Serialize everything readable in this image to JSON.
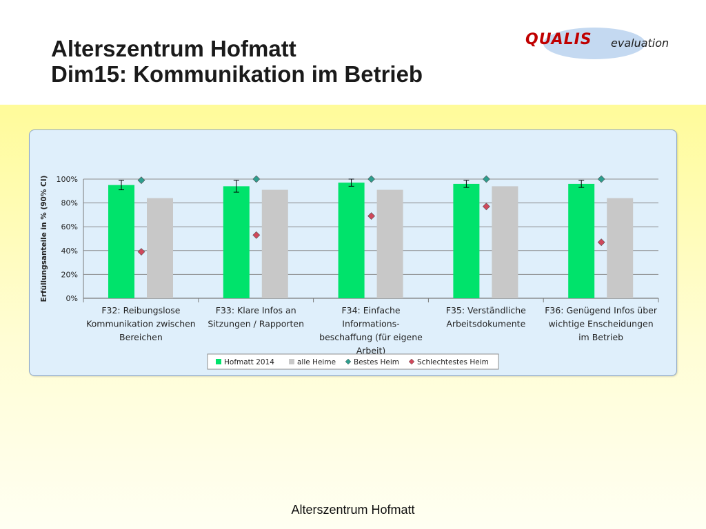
{
  "slide": {
    "title_line1": "Alterszentrum Hofmatt",
    "title_line2": "Dim15: Kommunikation im Betrieb",
    "logo_brand": "QUALIS",
    "logo_sub": "evaluation",
    "footer": "Alterszentrum Hofmatt"
  },
  "chart_data": {
    "type": "bar",
    "ylabel": "Erfüllungsanteile in % (90% CI)",
    "ylim": [
      0,
      100
    ],
    "yticks": [
      0,
      20,
      40,
      60,
      80,
      100
    ],
    "ytick_labels": [
      "0%",
      "20%",
      "40%",
      "60%",
      "80%",
      "100%"
    ],
    "grid": true,
    "legend_position": "bottom",
    "categories": [
      [
        "F32: Reibungslose",
        "Kommunikation zwischen",
        "Bereichen"
      ],
      [
        "F33: Klare Infos an",
        "Sitzungen / Rapporten"
      ],
      [
        "F34: Einfache",
        "Informations-",
        "beschaffung (für eigene",
        "Arbeit)"
      ],
      [
        "F35: Verständliche",
        "Arbeitsdokumente"
      ],
      [
        "F36: Genügend Infos über",
        "wichtige Enscheidungen",
        "im Betrieb"
      ]
    ],
    "series": [
      {
        "name": "Hofmatt 2014",
        "kind": "bar",
        "color": "#00e36b",
        "values": [
          95,
          94,
          97,
          96,
          96
        ],
        "ci_low": [
          91,
          89,
          94,
          93,
          93
        ],
        "ci_high": [
          99,
          99,
          100,
          99,
          99
        ]
      },
      {
        "name": "alle Heime",
        "kind": "bar",
        "color": "#c8c8c8",
        "values": [
          84,
          91,
          91,
          94,
          84
        ]
      },
      {
        "name": "Bestes Heim",
        "kind": "marker",
        "color": "#2e9e8e",
        "values": [
          99,
          100,
          100,
          100,
          100
        ]
      },
      {
        "name": "Schlechtestes Heim",
        "kind": "marker",
        "color": "#d0485b",
        "values": [
          39,
          53,
          69,
          77,
          47
        ]
      }
    ]
  }
}
